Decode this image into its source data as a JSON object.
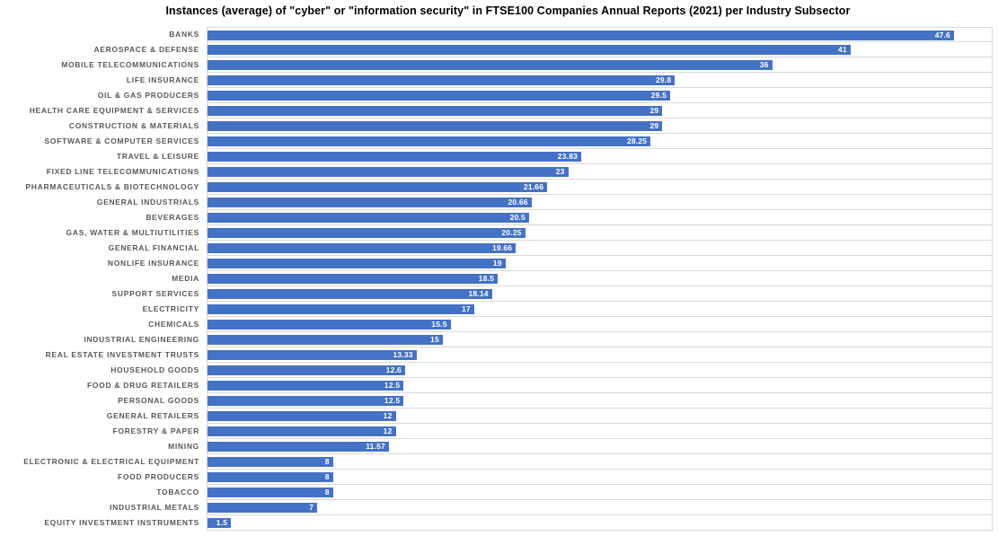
{
  "chart_data": {
    "type": "bar",
    "orientation": "horizontal",
    "title": "Instances (average) of \"cyber\" or \"information security\" in FTSE100 Companies Annual Reports (2021) per Industry Subsector",
    "xlabel": "",
    "ylabel": "",
    "xlim": [
      0,
      50
    ],
    "grid": "row-separator gridlines, light gray",
    "legend": "none",
    "bar_color": "#4472C4",
    "category_label_color": "#595959",
    "gridline_color": "#D9D9D9",
    "value_label_color": "#FFFFFF",
    "value_label_position": "inside-end",
    "categories": [
      "BANKS",
      "AEROSPACE & DEFENSE",
      "MOBILE TELECOMMUNICATIONS",
      "LIFE INSURANCE",
      "OIL & GAS PRODUCERS",
      "HEALTH CARE EQUIPMENT & SERVICES",
      "CONSTRUCTION & MATERIALS",
      "SOFTWARE & COMPUTER SERVICES",
      "TRAVEL & LEISURE",
      "FIXED LINE TELECOMMUNICATIONS",
      "PHARMACEUTICALS & BIOTECHNOLOGY",
      "GENERAL INDUSTRIALS",
      "BEVERAGES",
      "GAS, WATER & MULTIUTILITIES",
      "GENERAL FINANCIAL",
      "NONLIFE INSURANCE",
      "MEDIA",
      "SUPPORT SERVICES",
      "ELECTRICITY",
      "CHEMICALS",
      "INDUSTRIAL ENGINEERING",
      "REAL ESTATE INVESTMENT TRUSTS",
      "HOUSEHOLD GOODS",
      "FOOD & DRUG RETAILERS",
      "PERSONAL GOODS",
      "GENERAL RETAILERS",
      "FORESTRY & PAPER",
      "MINING",
      "ELECTRONIC & ELECTRICAL EQUIPMENT",
      "FOOD PRODUCERS",
      "TOBACCO",
      "INDUSTRIAL METALS",
      "EQUITY INVESTMENT INSTRUMENTS"
    ],
    "values": [
      47.6,
      41,
      36,
      29.8,
      29.5,
      29,
      29,
      28.25,
      23.83,
      23,
      21.66,
      20.66,
      20.5,
      20.25,
      19.66,
      19,
      18.5,
      18.14,
      17,
      15.5,
      15,
      13.33,
      12.6,
      12.5,
      12.5,
      12,
      12,
      11.57,
      8,
      8,
      8,
      7,
      1.5
    ]
  }
}
